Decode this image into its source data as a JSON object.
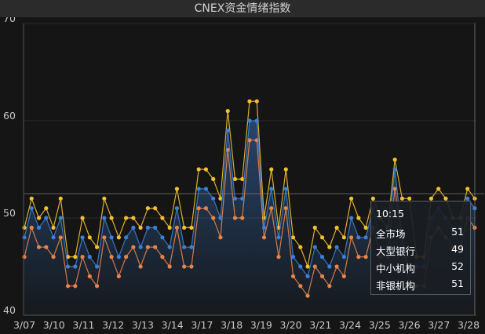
{
  "title": "CNEX资金情绪指数",
  "chart_data": {
    "type": "line",
    "title": "CNEX资金情绪指数",
    "ylim": [
      40,
      70
    ],
    "y_ticks": [
      40,
      50,
      60,
      70
    ],
    "x_tick_labels": [
      "3/07",
      "3/10",
      "3/11",
      "3/12",
      "3/13",
      "3/14",
      "3/17",
      "3/18",
      "3/19",
      "3/20",
      "3/21",
      "3/24",
      "3/25",
      "3/26",
      "3/27",
      "3/28"
    ],
    "colors": {
      "全市场": "#3b7fd6",
      "大型银行": "#e8834a",
      "中小机构": "#f2c02e",
      "非银机构": "#5a8fd0"
    },
    "series": [
      {
        "name": "中小机构",
        "values": [
          49,
          52,
          50,
          51,
          49,
          52,
          46,
          46,
          50,
          48,
          47,
          52,
          50,
          48,
          50,
          50,
          49,
          51,
          51,
          50,
          49,
          53,
          49,
          49,
          55,
          55,
          54,
          52,
          61,
          54,
          54,
          62,
          62,
          50,
          55,
          49,
          55,
          48,
          47,
          45,
          49,
          48,
          47,
          49,
          48,
          52,
          50,
          49,
          52,
          50,
          49,
          56,
          52,
          52,
          46,
          46,
          52,
          53,
          52,
          50,
          50,
          53,
          52
        ]
      },
      {
        "name": "全市场",
        "values": [
          48,
          51,
          49,
          50,
          48,
          50,
          45,
          45,
          48,
          46,
          45,
          50,
          48,
          46,
          48,
          49,
          47,
          49,
          49,
          48,
          47,
          51,
          47,
          47,
          53,
          53,
          52,
          50,
          59,
          52,
          52,
          60,
          60,
          49,
          53,
          48,
          53,
          46,
          45,
          44,
          47,
          46,
          45,
          47,
          46,
          50,
          48,
          48,
          51,
          48,
          48,
          55,
          48,
          45,
          45,
          45,
          50,
          51,
          50,
          49,
          49,
          52,
          51
        ]
      },
      {
        "name": "大型银行",
        "values": [
          46,
          49,
          47,
          47,
          46,
          48,
          43,
          43,
          46,
          44,
          43,
          48,
          46,
          44,
          46,
          47,
          45,
          47,
          47,
          46,
          45,
          49,
          45,
          45,
          51,
          51,
          50,
          48,
          57,
          50,
          50,
          58,
          58,
          48,
          51,
          46,
          51,
          44,
          43,
          42,
          45,
          44,
          43,
          45,
          44,
          48,
          46,
          46,
          49,
          46,
          46,
          53,
          48,
          43,
          43,
          43,
          48,
          49,
          48,
          47,
          47,
          50,
          49
        ]
      }
    ]
  },
  "crosshair": {
    "value": 52.5
  },
  "tooltip": {
    "time": "10:15",
    "rows": [
      {
        "name": "全市场",
        "value": "51"
      },
      {
        "name": "大型银行",
        "value": "49"
      },
      {
        "name": "中小机构",
        "value": "52"
      },
      {
        "name": "非银机构",
        "value": "51"
      }
    ]
  }
}
